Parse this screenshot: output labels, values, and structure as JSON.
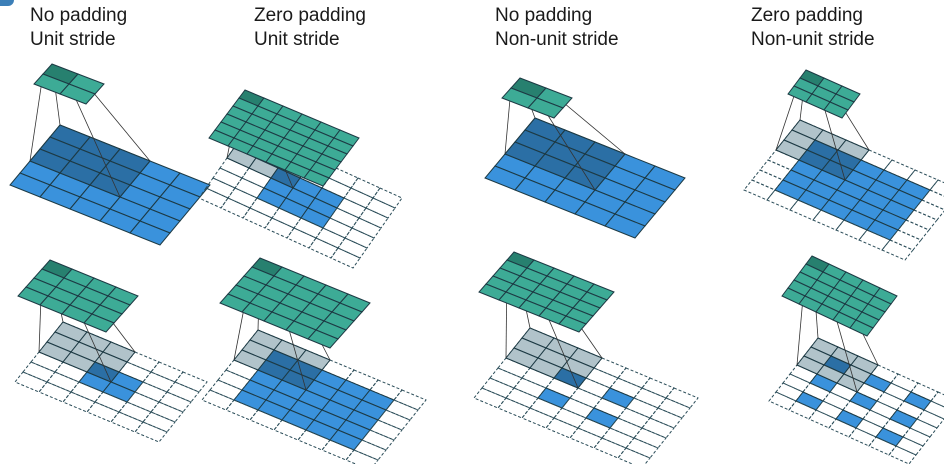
{
  "columns": [
    {
      "line1": "No padding",
      "line2": "Unit stride"
    },
    {
      "line1": "Zero padding",
      "line2": "Unit stride"
    },
    {
      "line1": "No padding",
      "line2": "Non-unit stride"
    },
    {
      "line1": "Zero padding",
      "line2": "Non-unit stride"
    }
  ],
  "colors": {
    "input": "#3a92dc",
    "input_shadow": "#2a6c9f",
    "kernel_shadow_on_padding": "#a9bcc4",
    "output": "#3dab96",
    "output_highlight": "#27806f",
    "grid_line": "#1d3a44",
    "padding_line": "#2a4c58",
    "projection_line": "#333333"
  },
  "figures": [
    {
      "name": "no-pad-unit-stride-1",
      "kind": "conv",
      "grid": 5,
      "pad": 0,
      "stride": 1,
      "output": 2,
      "kernel": 3,
      "active": [
        0,
        0
      ]
    },
    {
      "name": "zero-pad-unit-stride-1",
      "kind": "conv",
      "grid": 7,
      "pad": 2,
      "stride": 1,
      "output": 6,
      "kernel": 3,
      "active": [
        0,
        0
      ]
    },
    {
      "name": "no-pad-non-unit-stride-1",
      "kind": "conv",
      "grid": 5,
      "pad": 0,
      "stride": 2,
      "output": 2,
      "kernel": 3,
      "active": [
        0,
        0
      ]
    },
    {
      "name": "zero-pad-non-unit-stride-1",
      "kind": "conv",
      "grid": 7,
      "pad": 1,
      "stride": 2,
      "output": 3,
      "kernel": 3,
      "active": [
        0,
        0
      ]
    },
    {
      "name": "no-pad-unit-stride-2",
      "kind": "tconv",
      "grid": 6,
      "inputAt": [
        [
          2,
          2
        ],
        [
          2,
          3
        ],
        [
          3,
          2
        ],
        [
          3,
          3
        ]
      ],
      "output": 4,
      "kernel": 3,
      "active": [
        0,
        0
      ]
    },
    {
      "name": "zero-pad-unit-stride-2",
      "kind": "tconv",
      "grid": 7,
      "inputBlock": [
        1,
        1,
        5
      ],
      "output": 5,
      "kernel": 3,
      "active": [
        0,
        0
      ]
    },
    {
      "name": "no-pad-non-unit-stride-2",
      "kind": "tconv",
      "grid": 7,
      "inputAt": [
        [
          2,
          2
        ],
        [
          2,
          4
        ],
        [
          4,
          2
        ],
        [
          4,
          4
        ]
      ],
      "output": 5,
      "kernel": 3,
      "active": [
        0,
        0
      ]
    },
    {
      "name": "zero-pad-non-unit-stride-2",
      "kind": "tconv",
      "grid": 7,
      "inputAt": [
        [
          1,
          1
        ],
        [
          1,
          3
        ],
        [
          1,
          5
        ],
        [
          3,
          1
        ],
        [
          3,
          3
        ],
        [
          3,
          5
        ],
        [
          5,
          1
        ],
        [
          5,
          3
        ],
        [
          5,
          5
        ]
      ],
      "output": 5,
      "kernel": 3,
      "active": [
        0,
        0
      ]
    }
  ]
}
